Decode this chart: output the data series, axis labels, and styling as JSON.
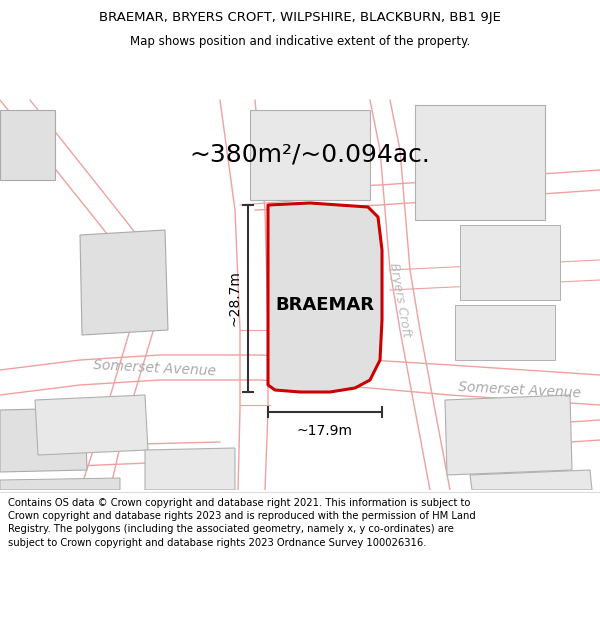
{
  "title_line1": "BRAEMAR, BRYERS CROFT, WILPSHIRE, BLACKBURN, BB1 9JE",
  "title_line2": "Map shows position and indicative extent of the property.",
  "area_label": "~380m²/~0.094ac.",
  "width_label": "~17.9m",
  "height_label": "~28.7m",
  "property_label": "BRAEMAR",
  "street1": "Somerset Avenue",
  "street2": "Somerset Avenue",
  "street3": "Bryers Croft",
  "copyright_text": "Contains OS data © Crown copyright and database right 2021. This information is subject to Crown copyright and database rights 2023 and is reproduced with the permission of HM Land Registry. The polygons (including the associated geometry, namely x, y co-ordinates) are subject to Crown copyright and database rights 2023 Ordnance Survey 100026316.",
  "map_bg": "#f8f8f8",
  "road_color": "#f0a0a0",
  "road_fill": "#ffffff",
  "building_fill": "#e0e0e0",
  "building_edge": "#aaaaaa",
  "property_outline": "#cc0000",
  "property_fill": "#e0e0e0",
  "dim_color": "#333333",
  "street_color": "#aaaaaa",
  "title_fs": 9.5,
  "subtitle_fs": 8.5,
  "area_fs": 18,
  "prop_label_fs": 13,
  "street_fs": 10,
  "copyright_fs": 7.2
}
